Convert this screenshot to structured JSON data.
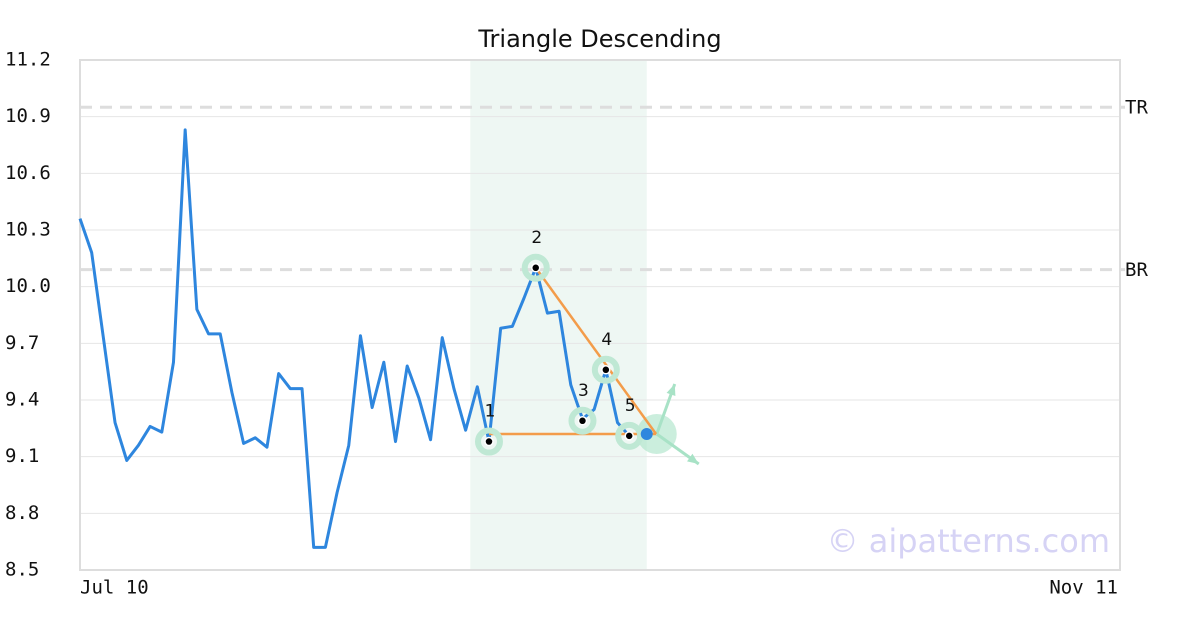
{
  "chart_data": {
    "type": "line",
    "title": "Triangle Descending",
    "x": [
      0,
      1,
      2,
      3,
      4,
      5,
      6,
      7,
      8,
      9,
      10,
      11,
      12,
      13,
      14,
      15,
      16,
      17,
      18,
      19,
      20,
      21,
      22,
      23,
      24,
      25,
      26,
      27,
      28,
      29,
      30,
      31,
      32,
      33,
      34,
      35,
      36,
      37,
      38,
      39,
      40,
      41,
      42,
      43,
      44,
      45,
      46,
      47
    ],
    "series": [
      {
        "color": "#2e86de",
        "values": [
          10.36,
          10.18,
          9.73,
          9.28,
          9.08,
          9.16,
          9.26,
          9.23,
          9.6,
          10.83,
          9.88,
          9.75,
          9.75,
          9.44,
          9.17,
          9.2,
          9.15,
          9.54,
          9.46,
          9.46,
          8.62,
          8.62,
          8.91,
          9.16,
          9.74,
          9.36,
          9.6,
          9.18,
          9.58,
          9.41,
          9.19,
          9.73,
          9.46,
          9.24,
          9.47,
          9.18,
          9.78,
          9.79,
          9.94,
          10.1,
          9.86,
          9.87,
          9.48,
          9.3,
          9.35,
          9.56,
          9.28,
          9.21
        ]
      }
    ],
    "xlim": [
      0,
      89
    ],
    "xticks": [
      {
        "value": 0,
        "label": "Jul 10"
      },
      {
        "value": 89,
        "label": "Nov 11"
      }
    ],
    "ylim": [
      8.5,
      11.2
    ],
    "yticks": [
      8.5,
      8.8,
      9.1,
      9.4,
      9.7,
      {
        "value": 10.0,
        "label": "10.0"
      },
      10.3,
      10.6,
      10.9,
      11.2
    ],
    "grid": true,
    "shaded_region": [
      33.4,
      48.5
    ],
    "levels": [
      {
        "label": "TR",
        "value": 10.95
      },
      {
        "label": "BR",
        "value": 10.09
      }
    ],
    "pattern_points": [
      {
        "label": "1",
        "x": 35,
        "y": 9.18
      },
      {
        "label": "2",
        "x": 39,
        "y": 10.1
      },
      {
        "label": "3",
        "x": 43,
        "y": 9.29
      },
      {
        "label": "4",
        "x": 45,
        "y": 9.56
      },
      {
        "label": "5",
        "x": 47,
        "y": 9.21
      }
    ],
    "lines": [
      {
        "color": "#f39c4a",
        "x": [
          35,
          49.3
        ],
        "y": [
          9.22,
          9.22
        ]
      },
      {
        "color": "#f39c4a",
        "x": [
          39,
          49.3
        ],
        "y": [
          10.1,
          9.22
        ]
      }
    ],
    "breakout": {
      "x": 48.5,
      "y": 9.22,
      "color": "#2e86de"
    },
    "watermark": "© aipatterns.com"
  }
}
